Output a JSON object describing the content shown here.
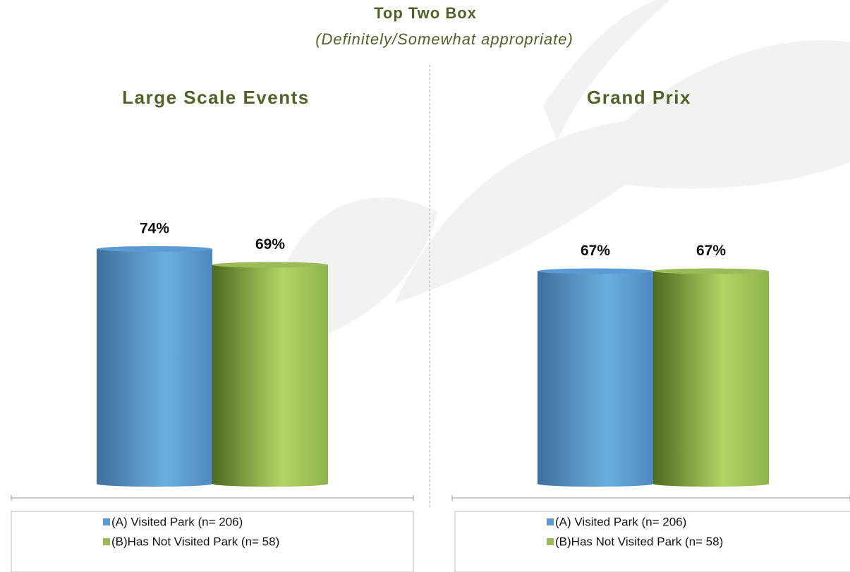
{
  "header": {
    "title": "Top Two Box",
    "subtitle": "(Definitely/Somewhat appropriate)"
  },
  "chart_data": [
    {
      "type": "bar",
      "title": "Large Scale Events",
      "categories": [
        null
      ],
      "series": [
        {
          "name": "(A) Visited Park (n= 206)",
          "color": "#5b9bd5",
          "values": [
            74
          ],
          "value_labels": [
            "74%"
          ]
        },
        {
          "name": "(B)Has Not Visited Park (n= 58)",
          "color": "#9bbb59",
          "values": [
            69
          ],
          "value_labels": [
            "69%"
          ]
        }
      ]
    },
    {
      "type": "bar",
      "title": "Grand Prix",
      "categories": [
        null
      ],
      "series": [
        {
          "name": "(A) Visited Park (n= 206)",
          "color": "#5b9bd5",
          "values": [
            67
          ],
          "value_labels": [
            "67%"
          ]
        },
        {
          "name": "(B)Has Not Visited Park (n= 58)",
          "color": "#9bbb59",
          "values": [
            67
          ],
          "value_labels": [
            "67%"
          ]
        }
      ]
    }
  ]
}
